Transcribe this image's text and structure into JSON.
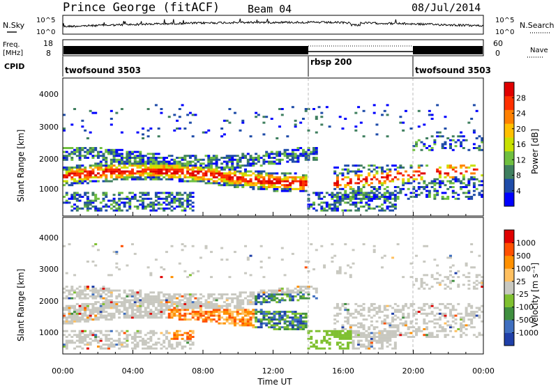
{
  "header": {
    "station": "Prince George (fitACF)",
    "beam": "Beam 04",
    "date": "08/Jul/2014"
  },
  "panels": {
    "nsky_label": "N.Sky",
    "nsky_ticks": [
      "10^5",
      "10^0"
    ],
    "nsearch_label": "N.Search",
    "nsearch_ticks": [
      "10^5",
      "10^0"
    ],
    "freq_label_1": "Freq.",
    "freq_label_2": "[MHz]",
    "freq_ticks": [
      "18",
      "8"
    ],
    "nave_label": "Nave",
    "nave_ticks": [
      "60",
      "0"
    ],
    "cpid_label": "CPID",
    "cpid_segments": [
      "twofsound 3503",
      "rbsp 200",
      "twofsound 3503"
    ]
  },
  "chart_data": [
    {
      "type": "heatmap",
      "name": "power",
      "ylabel": "Slant Range [km]",
      "yticks": [
        "4000",
        "3000",
        "2000",
        "1000"
      ],
      "ylim": [
        180,
        4500
      ],
      "colorbar_label": "Power [dB]",
      "colorbar_ticks": [
        "28",
        "24",
        "20",
        "16",
        "12",
        "8",
        "4"
      ],
      "colors": [
        "#0000ff",
        "#1f4ca8",
        "#3f7f5f",
        "#6fbf3f",
        "#c8e000",
        "#ffc000",
        "#ff8000",
        "#ff3000",
        "#e00000"
      ]
    },
    {
      "type": "heatmap",
      "name": "velocity",
      "ylabel": "Slant Range [km]",
      "yticks": [
        "4000",
        "3000",
        "2000",
        "1000"
      ],
      "ylim": [
        180,
        4500
      ],
      "colorbar_label": "Velocity [m s⁻¹]",
      "colorbar_ticks": [
        "1000",
        "500",
        "100",
        "25",
        "-25",
        "-100",
        "-500",
        "-1000"
      ],
      "colors": [
        "#1f3fa8",
        "#3f6fbf",
        "#3f8f3f",
        "#7fc030",
        "#c8c8c0",
        "#ffc060",
        "#ff9000",
        "#ff5000",
        "#e00000"
      ]
    }
  ],
  "xaxis": {
    "label": "Time UT",
    "ticks": [
      "00:00",
      "04:00",
      "08:00",
      "12:00",
      "16:00",
      "20:00",
      "00:00"
    ]
  },
  "colors": {
    "noise_line": "#000000",
    "mode_divider": "#bbbbbb"
  }
}
